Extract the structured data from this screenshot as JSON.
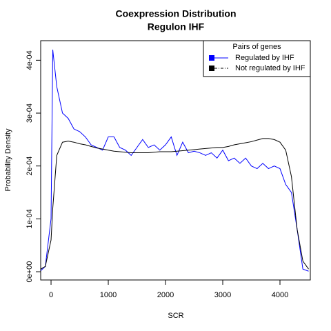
{
  "chart_data": {
    "type": "line",
    "title": "Coexpression Distribution",
    "subtitle": "Regulon IHF",
    "x_label": "SCR",
    "y_label": "Probability Density",
    "legend_title": "Pairs of genes",
    "legend": "topright",
    "xlim": [
      -181,
      4530
    ],
    "ylim": [
      -1.56e-05,
      0.000437
    ],
    "xticks": [
      0,
      1000,
      2000,
      3000,
      4000
    ],
    "yticks": [
      {
        "value": 0,
        "label": "0e+00"
      },
      {
        "value": 0.0001,
        "label": "1e-04"
      },
      {
        "value": 0.0002,
        "label": "2e-04"
      },
      {
        "value": 0.0003,
        "label": "3e-04"
      },
      {
        "value": 0.0004,
        "label": "4e-04"
      }
    ],
    "x": [
      -180,
      -100,
      0,
      30,
      100,
      200,
      300,
      400,
      500,
      600,
      700,
      800,
      900,
      1000,
      1100,
      1200,
      1300,
      1400,
      1500,
      1600,
      1700,
      1800,
      1900,
      2000,
      2100,
      2200,
      2300,
      2400,
      2500,
      2600,
      2700,
      2800,
      2900,
      3000,
      3100,
      3200,
      3300,
      3400,
      3500,
      3600,
      3700,
      3800,
      3900,
      4000,
      4100,
      4200,
      4300,
      4400,
      4500
    ],
    "series": [
      {
        "name": "Regulated by  IHF",
        "color": "#0000ff",
        "values": [
          2e-06,
          1e-05,
          0.0001,
          0.00042,
          0.00035,
          0.0003,
          0.00029,
          0.00027,
          0.000265,
          0.000255,
          0.00024,
          0.000235,
          0.00023,
          0.000255,
          0.000255,
          0.000235,
          0.00023,
          0.00022,
          0.000235,
          0.00025,
          0.000235,
          0.00024,
          0.00023,
          0.00024,
          0.000255,
          0.00022,
          0.000245,
          0.000225,
          0.000228,
          0.000225,
          0.00022,
          0.000225,
          0.000215,
          0.00023,
          0.00021,
          0.000215,
          0.000205,
          0.000215,
          0.0002,
          0.000195,
          0.000205,
          0.000195,
          0.0002,
          0.000195,
          0.000165,
          0.00015,
          8e-05,
          5e-06,
          1e-06
        ]
      },
      {
        "name": "Not regulated by  IHF",
        "color": "#000000",
        "values": [
          5e-06,
          1e-05,
          6e-05,
          0.00012,
          0.00022,
          0.000245,
          0.000247,
          0.000245,
          0.000242,
          0.00024,
          0.000237,
          0.000234,
          0.000232,
          0.00023,
          0.000228,
          0.000227,
          0.000226,
          0.000225,
          0.000225,
          0.000225,
          0.000225,
          0.000226,
          0.000227,
          0.000227,
          0.000227,
          0.000228,
          0.000229,
          0.00023,
          0.000231,
          0.000232,
          0.000233,
          0.000234,
          0.000235,
          0.000235,
          0.000237,
          0.00024,
          0.000242,
          0.000244,
          0.000246,
          0.000249,
          0.000252,
          0.000252,
          0.00025,
          0.000245,
          0.00023,
          0.00018,
          8e-05,
          2e-05,
          5e-06
        ]
      }
    ]
  }
}
